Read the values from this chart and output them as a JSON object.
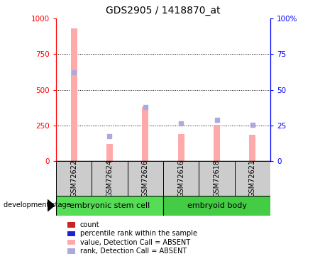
{
  "title": "GDS2905 / 1418870_at",
  "samples": [
    "GSM72622",
    "GSM72624",
    "GSM72626",
    "GSM72616",
    "GSM72618",
    "GSM72621"
  ],
  "groups": [
    {
      "label": "embryonic stem cell",
      "color": "#55dd55",
      "count": 3
    },
    {
      "label": "embryoid body",
      "color": "#44cc44",
      "count": 3
    }
  ],
  "pink_bar_values": [
    930,
    120,
    380,
    190,
    255,
    185
  ],
  "blue_dot_values_right": [
    62,
    17.5,
    38,
    26.5,
    29,
    25.5
  ],
  "ylim_left": [
    0,
    1000
  ],
  "ylim_right": [
    0,
    100
  ],
  "yticks_left": [
    0,
    250,
    500,
    750,
    1000
  ],
  "yticks_right": [
    0,
    25,
    50,
    75,
    100
  ],
  "ytick_labels_left": [
    "0",
    "250",
    "500",
    "750",
    "1000"
  ],
  "ytick_labels_right": [
    "0",
    "25",
    "50",
    "75",
    "100%"
  ],
  "grid_values": [
    250,
    500,
    750
  ],
  "pink_color": "#ffaaaa",
  "blue_color": "#aaaadd",
  "legend_items": [
    {
      "color": "#cc2222",
      "label": "count"
    },
    {
      "color": "#2222cc",
      "label": "percentile rank within the sample"
    },
    {
      "color": "#ffaaaa",
      "label": "value, Detection Call = ABSENT"
    },
    {
      "color": "#aaaadd",
      "label": "rank, Detection Call = ABSENT"
    }
  ],
  "development_stage_label": "development stage",
  "background_gray": "#cccccc",
  "x_label_fontsize": 7,
  "title_fontsize": 10,
  "tick_fontsize": 7.5,
  "legend_fontsize": 7,
  "group_label_fontsize": 8
}
